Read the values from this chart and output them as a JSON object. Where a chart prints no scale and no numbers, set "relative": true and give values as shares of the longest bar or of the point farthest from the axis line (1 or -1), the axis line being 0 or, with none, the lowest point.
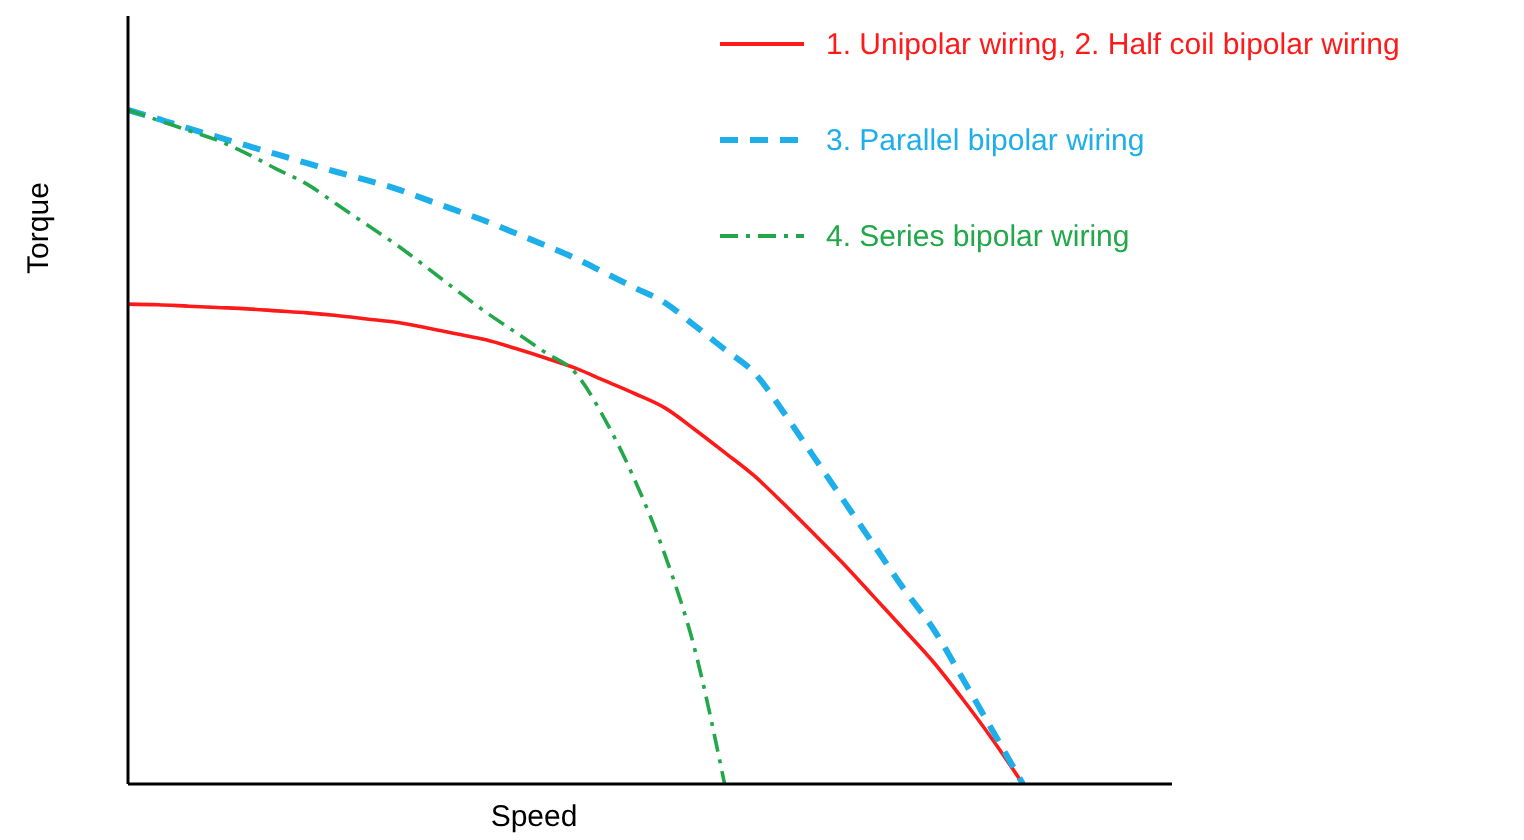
{
  "chart_data": {
    "type": "line",
    "relative": true,
    "xlabel": "Speed",
    "ylabel": "Torque",
    "legend": "top right",
    "categories": [
      null,
      null,
      null,
      null,
      null,
      null,
      null,
      null,
      null,
      null,
      null,
      null,
      null,
      null,
      null,
      null,
      null,
      null,
      null,
      null,
      null,
      null,
      null,
      null,
      null,
      null,
      null,
      null,
      null,
      null,
      null,
      null,
      null,
      null,
      null,
      null
    ],
    "series": [
      {
        "name": "1. Unipolar wiring, 2. Half coil bipolar wiring",
        "color": "#ff1a1a",
        "line_style": "solid",
        "values": [
          0.712,
          0.711,
          0.709,
          0.707,
          0.705,
          0.702,
          0.699,
          0.695,
          0.69,
          0.685,
          0.677,
          0.668,
          0.659,
          0.646,
          0.632,
          0.617,
          0.598,
          0.579,
          0.558,
          0.526,
          0.492,
          0.457,
          0.415,
          0.371,
          0.326,
          0.278,
          0.23,
          0.181,
          0.125,
          0.065,
          0,
          null,
          null,
          null,
          null,
          null
        ]
      },
      {
        "name": "3. Parallel bipolar wiring",
        "color": "#1eaeea",
        "line_style": "dashed",
        "values": [
          1,
          0.987,
          0.973,
          0.96,
          0.947,
          0.934,
          0.921,
          0.908,
          0.896,
          0.883,
          0.867,
          0.851,
          0.835,
          0.817,
          0.799,
          0.78,
          0.758,
          0.736,
          0.714,
          0.68,
          0.645,
          0.61,
          0.55,
          0.485,
          0.42,
          0.355,
          0.29,
          0.23,
          0.155,
          0.078,
          0,
          null,
          null,
          null,
          null,
          null
        ]
      },
      {
        "name": "4. Series bipolar wiring",
        "color": "#22a84a",
        "line_style": "dashdot",
        "values": [
          1,
          0.985,
          0.97,
          0.955,
          0.935,
          0.912,
          0.89,
          0.86,
          0.83,
          0.8,
          0.767,
          0.733,
          0.7,
          0.67,
          0.64,
          0.61,
          0.54,
          0.45,
          0.34,
          0.2,
          0,
          null,
          null,
          null,
          null,
          null,
          null,
          null,
          null,
          null,
          null,
          null,
          null,
          null,
          null,
          null
        ]
      }
    ]
  }
}
